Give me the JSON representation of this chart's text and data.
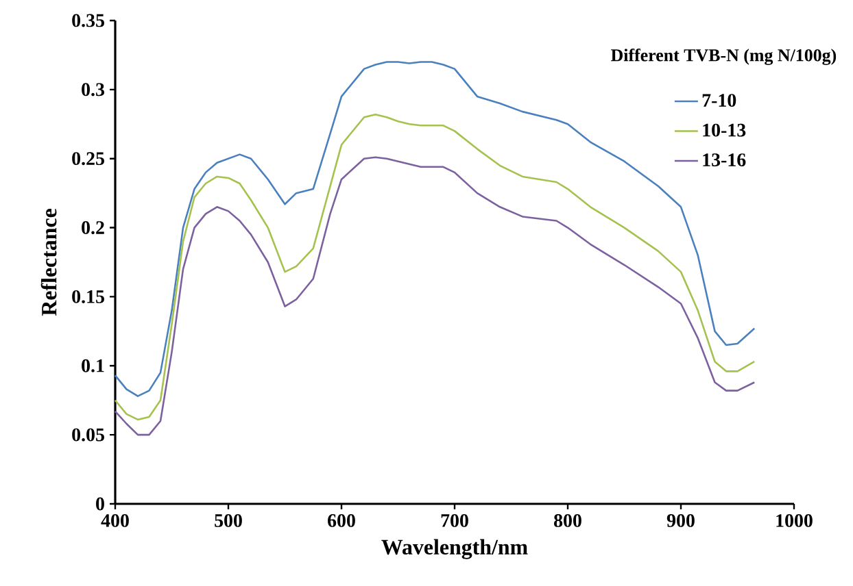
{
  "chart_data": {
    "type": "line",
    "xlabel": "Wavelength/nm",
    "ylabel": "Reflectance",
    "legend_title": "Different TVB-N (mg N/100g)",
    "legend": "top right",
    "grid": false,
    "marker": "none",
    "line_style": "solid",
    "xlim": [
      400,
      1000
    ],
    "xticks": [
      400,
      500,
      600,
      700,
      800,
      900,
      1000
    ],
    "ylim": [
      0,
      0.35
    ],
    "yticks": [
      0,
      0.05,
      0.1,
      0.15,
      0.2,
      0.25,
      0.3,
      0.35
    ],
    "x": [
      400,
      410,
      420,
      430,
      440,
      450,
      460,
      470,
      480,
      490,
      500,
      510,
      520,
      535,
      550,
      560,
      575,
      590,
      600,
      620,
      630,
      640,
      650,
      660,
      670,
      680,
      690,
      700,
      720,
      740,
      760,
      790,
      800,
      820,
      850,
      880,
      900,
      915,
      930,
      940,
      950,
      965
    ],
    "series": [
      {
        "name": "7-10",
        "color": "#4a80bd",
        "values": [
          0.093,
          0.083,
          0.078,
          0.082,
          0.095,
          0.14,
          0.2,
          0.228,
          0.24,
          0.247,
          0.25,
          0.253,
          0.25,
          0.235,
          0.217,
          0.225,
          0.228,
          0.268,
          0.295,
          0.315,
          0.318,
          0.32,
          0.32,
          0.319,
          0.32,
          0.32,
          0.318,
          0.315,
          0.295,
          0.29,
          0.284,
          0.278,
          0.275,
          0.262,
          0.248,
          0.23,
          0.215,
          0.18,
          0.125,
          0.115,
          0.116,
          0.127
        ]
      },
      {
        "name": "10-13",
        "color": "#a5c24e",
        "values": [
          0.075,
          0.065,
          0.061,
          0.063,
          0.075,
          0.13,
          0.19,
          0.222,
          0.232,
          0.237,
          0.236,
          0.232,
          0.22,
          0.2,
          0.168,
          0.172,
          0.185,
          0.23,
          0.26,
          0.28,
          0.282,
          0.28,
          0.277,
          0.275,
          0.274,
          0.274,
          0.274,
          0.27,
          0.257,
          0.245,
          0.237,
          0.233,
          0.228,
          0.215,
          0.2,
          0.183,
          0.168,
          0.14,
          0.103,
          0.096,
          0.096,
          0.103
        ]
      },
      {
        "name": "13-16",
        "color": "#7b61a0",
        "values": [
          0.067,
          0.058,
          0.05,
          0.05,
          0.06,
          0.11,
          0.17,
          0.2,
          0.21,
          0.215,
          0.212,
          0.205,
          0.195,
          0.175,
          0.143,
          0.148,
          0.163,
          0.21,
          0.235,
          0.25,
          0.251,
          0.25,
          0.248,
          0.246,
          0.244,
          0.244,
          0.244,
          0.24,
          0.225,
          0.215,
          0.208,
          0.205,
          0.2,
          0.188,
          0.173,
          0.157,
          0.145,
          0.12,
          0.088,
          0.082,
          0.082,
          0.088
        ]
      }
    ]
  }
}
